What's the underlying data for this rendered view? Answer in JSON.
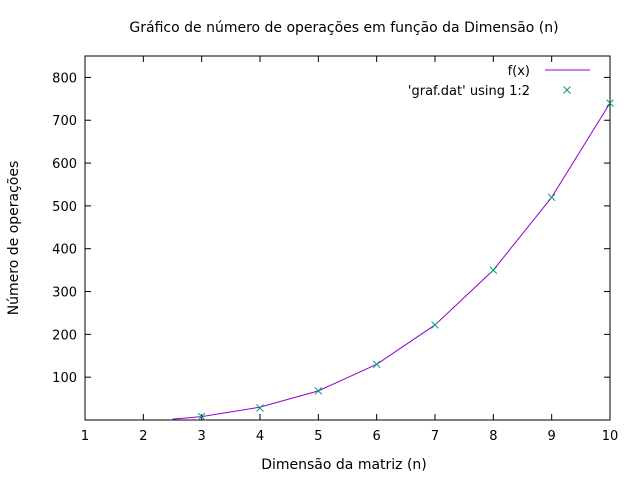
{
  "chart_data": {
    "type": "line",
    "title": "Gráfico de número de operações em função da Dimensão (n)",
    "xlabel": "Dimensão da matriz (n)",
    "ylabel": "Número de operações",
    "xlim": [
      1,
      10
    ],
    "ylim": [
      0,
      850
    ],
    "xticks": [
      1,
      2,
      3,
      4,
      5,
      6,
      7,
      8,
      9,
      10
    ],
    "yticks": [
      100,
      200,
      300,
      400,
      500,
      600,
      700,
      800
    ],
    "grid": false,
    "legend_position": "top-right",
    "series": [
      {
        "name": "f(x)",
        "kind": "line",
        "color": "#9400d3",
        "x": [
          2.5,
          3,
          4,
          5,
          6,
          7,
          8,
          9,
          10
        ],
        "y": [
          2,
          8,
          30,
          68,
          130,
          222,
          350,
          520,
          740
        ]
      },
      {
        "name": "'graf.dat' using 1:2",
        "kind": "points",
        "marker": "x",
        "color": "#009e73",
        "x": [
          3,
          4,
          5,
          6,
          7,
          8,
          9,
          10
        ],
        "y": [
          8,
          28,
          68,
          130,
          222,
          350,
          520,
          740
        ]
      }
    ]
  }
}
